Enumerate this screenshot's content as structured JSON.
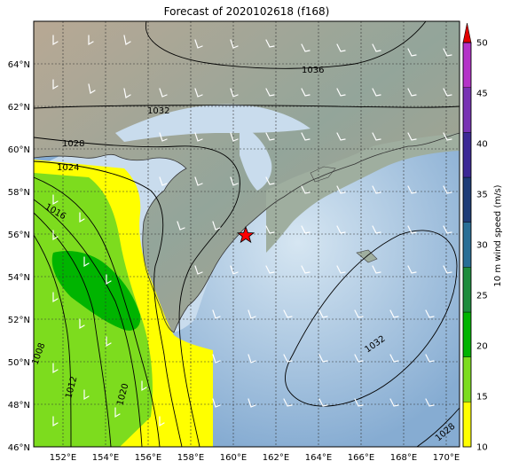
{
  "title": "Forecast of 2020102618 (f168)",
  "colorbar": {
    "label": "10 m wind speed (m/s)",
    "ticks": [
      "10",
      "15",
      "20",
      "25",
      "30",
      "35",
      "40",
      "45",
      "50"
    ],
    "colors": [
      "#ffff00",
      "#7ddc1e",
      "#00b400",
      "#1e8c3c",
      "#286e96",
      "#1e3c78",
      "#3c2896",
      "#7832b4",
      "#b432c8"
    ],
    "extend_color": "#e10000"
  },
  "axes": {
    "lon_ticks": [
      "152°E",
      "154°E",
      "156°E",
      "158°E",
      "160°E",
      "162°E",
      "164°E",
      "166°E",
      "168°E",
      "170°E"
    ],
    "lat_ticks": [
      "64°N",
      "62°N",
      "60°N",
      "58°N",
      "56°N",
      "54°N",
      "52°N",
      "50°N",
      "48°N",
      "46°N"
    ]
  },
  "contours": [
    {
      "label": "1036"
    },
    {
      "label": "1032"
    },
    {
      "label": "1028"
    },
    {
      "label": "1024"
    },
    {
      "label": "1016"
    },
    {
      "label": "1008"
    },
    {
      "label": "1012"
    },
    {
      "label": "1020"
    },
    {
      "label": "1032"
    },
    {
      "label": "1028"
    }
  ],
  "marker": {
    "symbol": "star",
    "color": "#ff0000",
    "lon": 160.6,
    "lat": 56.0
  },
  "colors": {
    "sea": "#a9c6e0",
    "land": "#9aa79e",
    "frame": "#000000"
  }
}
